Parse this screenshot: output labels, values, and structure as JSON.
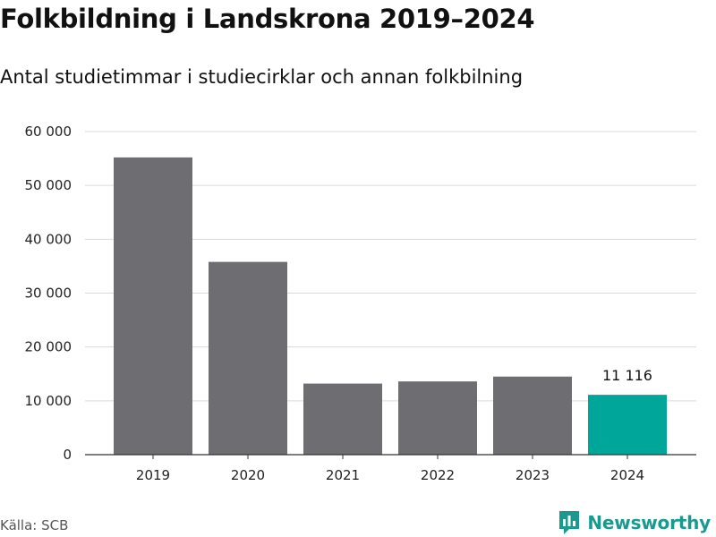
{
  "header": {
    "title": "Folkbildning i Landskrona 2019–2024",
    "subtitle": "Antal studietimmar i studiecirklar och annan folkbilning"
  },
  "footer": {
    "source": "Källa: SCB",
    "brand": "Newsworthy",
    "brand_icon": "newsworthy-logo-icon"
  },
  "colors": {
    "bar": "#6e6d72",
    "highlight": "#00a69a",
    "grid": "#d9d9d9",
    "axis": "#333333",
    "brand": "#1a9a8e"
  },
  "chart_data": {
    "type": "bar",
    "categories": [
      "2019",
      "2020",
      "2021",
      "2022",
      "2023",
      "2024"
    ],
    "values": [
      55200,
      35800,
      13200,
      13600,
      14500,
      11116
    ],
    "highlight_index": 5,
    "data_labels": [
      null,
      null,
      null,
      null,
      null,
      "11 116"
    ],
    "ylim": [
      0,
      60000
    ],
    "yticks": [
      0,
      10000,
      20000,
      30000,
      40000,
      50000,
      60000
    ],
    "ytick_labels": [
      "0",
      "10 000",
      "20 000",
      "30 000",
      "40 000",
      "50 000",
      "60 000"
    ],
    "grid": true,
    "legend": false
  }
}
